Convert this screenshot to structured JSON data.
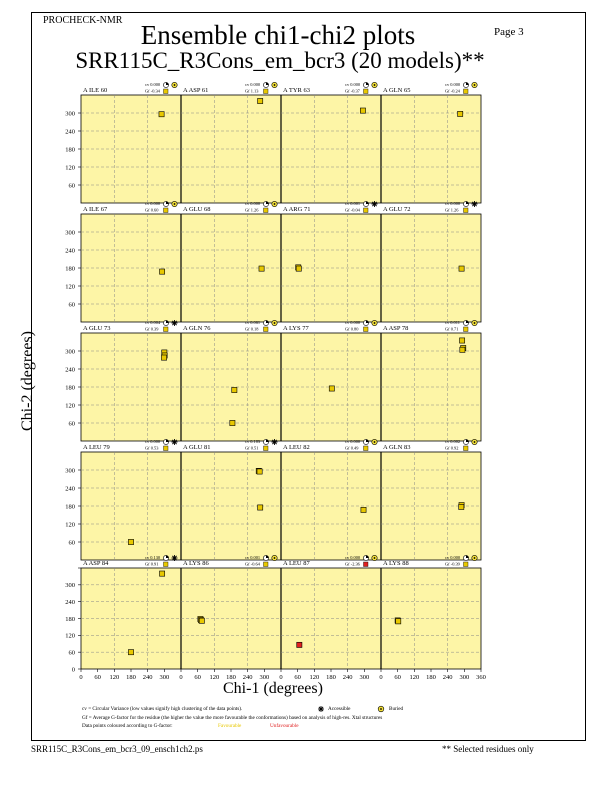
{
  "header": {
    "program": "PROCHECK-NMR",
    "page": "Page  3",
    "title": "Ensemble chi1-chi2 plots",
    "subtitle": "SRR115C_R3Cons_em_bcr3 (20 models)**"
  },
  "footer": {
    "filename": "SRR115C_R3Cons_em_bcr3_09_ensch1ch2.ps",
    "note": "** Selected residues only"
  },
  "legend": {
    "cv_text": "cv = Circular Variance (low values signify high clustering of the data points).",
    "accessible": "Accessible",
    "buried": "Buried",
    "gf_text": "Gf = Average G-factor for the residue (the higher the value the more favourable the conformations) based on analysis of high-res. Xtal structures",
    "colour_text": "Data points coloured according to G-factor:",
    "favourable": "Favourable",
    "unfavourable": "Unfavourable"
  },
  "colors": {
    "panel_bg": "#fdf5a6",
    "favourable": "#e8c800",
    "unfavourable": "#e02020",
    "buried": "#f5e23a"
  },
  "chart_data": {
    "type": "scatter",
    "xlabel": "Chi-1 (degrees)",
    "ylabel": "Chi-2 (degrees)",
    "xlim": [
      0,
      360
    ],
    "ylim": [
      0,
      360
    ],
    "xticks": [
      0,
      60,
      120,
      180,
      240,
      300,
      360
    ],
    "yticks": [
      60,
      120,
      180,
      240,
      300
    ],
    "bottom_yticks": [
      0,
      60,
      120,
      180,
      240,
      300
    ],
    "grid": true,
    "residues": [
      {
        "label": "A ILE 60",
        "cv": "cv 0.000",
        "gf": "Gf -0.34",
        "access": "buried",
        "cvicon": "sun",
        "points": [
          [
            290,
            296
          ]
        ],
        "unfav": false
      },
      {
        "label": "A ASP 61",
        "cv": "cv 0.000",
        "gf": "Gf 1.13",
        "access": "buried",
        "cvicon": "sun",
        "points": [
          [
            285,
            340
          ]
        ],
        "unfav": false
      },
      {
        "label": "A TYR 63",
        "cv": "cv 0.000",
        "gf": "Gf -0.37",
        "access": "buried",
        "cvicon": "sun",
        "points": [
          [
            295,
            308
          ]
        ],
        "unfav": false
      },
      {
        "label": "A GLN 65",
        "cv": "cv 0.000",
        "gf": "Gf -0.24",
        "access": "buried",
        "cvicon": "sun",
        "points": [
          [
            285,
            297
          ]
        ],
        "unfav": false
      },
      {
        "label": "A ILE 67",
        "cv": "cv 0.000",
        "gf": "Gf 0.60",
        "access": "buried",
        "cvicon": "sun",
        "points": [
          [
            292,
            168
          ]
        ],
        "unfav": false
      },
      {
        "label": "A GLU 68",
        "cv": "cv 0.000",
        "gf": "Gf 1.26",
        "access": "buried",
        "cvicon": "sun",
        "points": [
          [
            290,
            178
          ]
        ],
        "unfav": false
      },
      {
        "label": "A ARG 71",
        "cv": "cv 0.001",
        "gf": "Gf -0.04",
        "access": "accessible",
        "cvicon": "sun",
        "points": [
          [
            62,
            182
          ],
          [
            64,
            178
          ]
        ],
        "unfav": false
      },
      {
        "label": "A GLU 72",
        "cv": "cv 0.000",
        "gf": "Gf 1.26",
        "access": "accessible",
        "cvicon": "sun",
        "points": [
          [
            290,
            178
          ]
        ],
        "unfav": false
      },
      {
        "label": "A GLU 73",
        "cv": "cv 0.004",
        "gf": "Gf 0.39",
        "access": "accessible",
        "cvicon": "sun",
        "points": [
          [
            300,
            295
          ],
          [
            301,
            285
          ],
          [
            299,
            278
          ]
        ],
        "unfav": false
      },
      {
        "label": "A GLN 76",
        "cv": "cv 0.061",
        "gf": "Gf 0.18",
        "access": "buried",
        "cvicon": "sun",
        "points": [
          [
            192,
            170
          ],
          [
            185,
            60
          ]
        ],
        "unfav": false
      },
      {
        "label": "A LYS 77",
        "cv": "cv 0.000",
        "gf": "Gf 0.80",
        "access": "buried",
        "cvicon": "sun",
        "points": [
          [
            183,
            175
          ]
        ],
        "unfav": false
      },
      {
        "label": "A ASP 78",
        "cv": "cv 0.011",
        "gf": "Gf 0.71",
        "access": "buried",
        "cvicon": "sun",
        "points": [
          [
            292,
            335
          ],
          [
            296,
            310
          ],
          [
            293,
            304
          ]
        ],
        "unfav": false
      },
      {
        "label": "A LEU 79",
        "cv": "cv 0.000",
        "gf": "Gf 0.53",
        "access": "accessible",
        "cvicon": "sun",
        "points": [
          [
            180,
            60
          ]
        ],
        "unfav": false
      },
      {
        "label": "A GLU 81",
        "cv": "cv 0.183",
        "gf": "Gf 0.51",
        "access": "accessible",
        "cvicon": "sun",
        "points": [
          [
            280,
            297
          ],
          [
            283,
            295
          ],
          [
            285,
            175
          ]
        ],
        "unfav": false
      },
      {
        "label": "A LEU 82",
        "cv": "cv 0.000",
        "gf": "Gf 0.49",
        "access": "buried",
        "cvicon": "sun",
        "points": [
          [
            297,
            167
          ]
        ],
        "unfav": false
      },
      {
        "label": "A GLN 83",
        "cv": "cv 0.002",
        "gf": "Gf 0.92",
        "access": "buried",
        "cvicon": "sun",
        "points": [
          [
            290,
            183
          ],
          [
            289,
            177
          ]
        ],
        "unfav": false
      },
      {
        "label": "A ASP 84",
        "cv": "cv 0.130",
        "gf": "Gf 0.91",
        "access": "accessible",
        "cvicon": "sun",
        "points": [
          [
            292,
            340
          ],
          [
            180,
            60
          ]
        ],
        "unfav": false
      },
      {
        "label": "A LYS 86",
        "cv": "cv 0.001",
        "gf": "Gf -0.64",
        "access": "buried",
        "cvicon": "sun",
        "points": [
          [
            70,
            178
          ],
          [
            72,
            174
          ],
          [
            75,
            172
          ]
        ],
        "unfav": false
      },
      {
        "label": "A LEU 87",
        "cv": "cv 0.000",
        "gf": "Gf -2.36",
        "access": "unfav",
        "cvicon": "sun",
        "points": [
          [
            66,
            86
          ]
        ],
        "unfav": true
      },
      {
        "label": "A LYS 88",
        "cv": "cv 0.000",
        "gf": "Gf -0.39",
        "access": "buried",
        "cvicon": "sun",
        "points": [
          [
            60,
            173
          ],
          [
            62,
            170
          ]
        ],
        "unfav": false
      }
    ]
  }
}
